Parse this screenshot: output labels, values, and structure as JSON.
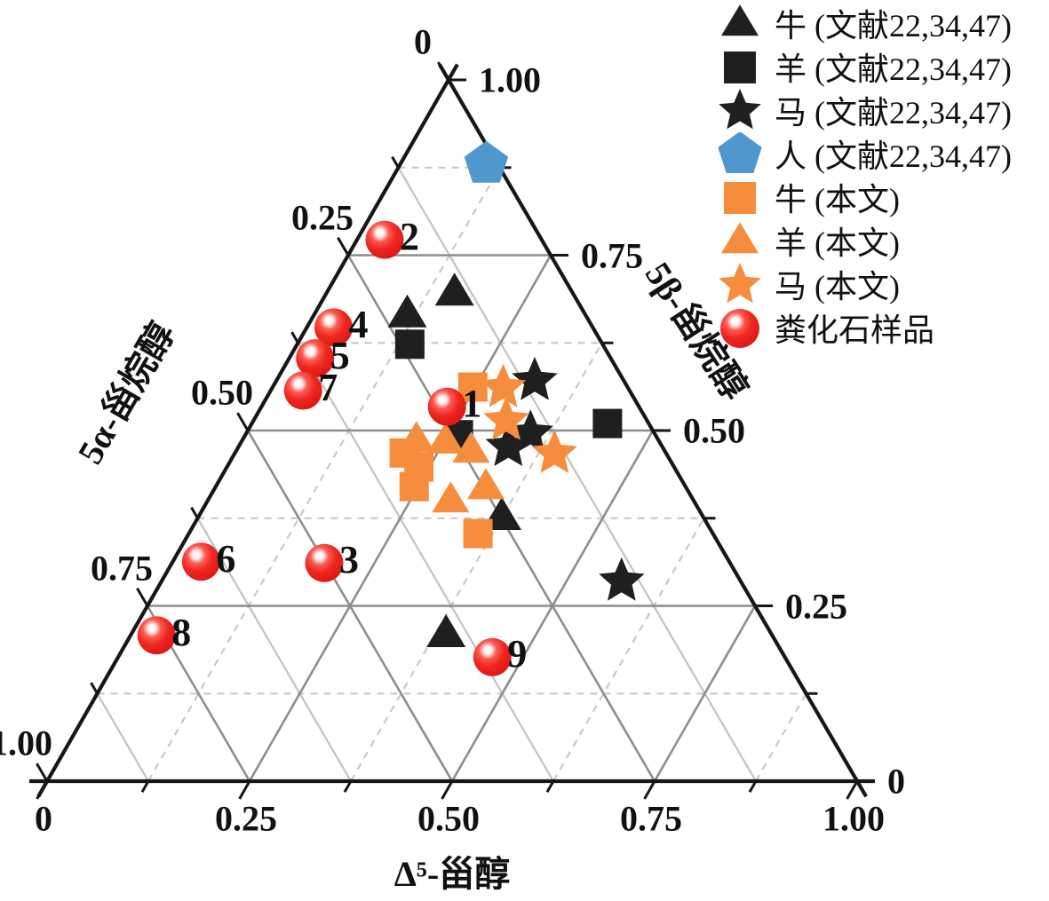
{
  "colors": {
    "black": "#1f1f1f",
    "orange": "#f68d3c",
    "blue": "#4f97cd",
    "red": "#e8201c",
    "axis": "#161616",
    "grid_major": "#8d8d8d",
    "grid_minor_solid": "#c2c2c2",
    "grid_minor_dash": "#c9c9c9",
    "text": "#111111"
  },
  "chart_data": {
    "type": "scatter",
    "subtype": "ternary",
    "title": "",
    "axes": {
      "left": {
        "title": "5α-甾烷醇",
        "ticks": [
          {
            "v": 0,
            "label": "0"
          },
          {
            "v": 0.25,
            "label": "0.25"
          },
          {
            "v": 0.5,
            "label": "0.50"
          },
          {
            "v": 0.75,
            "label": "0.75"
          },
          {
            "v": 1,
            "label": "1.00"
          }
        ]
      },
      "right": {
        "title": "5β-甾烷醇",
        "ticks": [
          {
            "v": 1,
            "label": "1.00"
          },
          {
            "v": 0.75,
            "label": "0.75"
          },
          {
            "v": 0.5,
            "label": "0.50"
          },
          {
            "v": 0.25,
            "label": "0.25"
          },
          {
            "v": 0,
            "label": "0"
          }
        ]
      },
      "bottom": {
        "title": "Δ⁵-甾醇",
        "ticks": [
          {
            "v": 0,
            "label": "0"
          },
          {
            "v": 0.25,
            "label": "0.25"
          },
          {
            "v": 0.5,
            "label": "0.50"
          },
          {
            "v": 0.75,
            "label": "0.75"
          },
          {
            "v": 1,
            "label": "1.00"
          }
        ]
      }
    },
    "grid": {
      "major": [
        0.25,
        0.5,
        0.75
      ],
      "minor": [
        0.125,
        0.375,
        0.625,
        0.875
      ],
      "minor_ticks": [
        0.125,
        0.375,
        0.625,
        0.875
      ]
    },
    "legend_position": "top-right",
    "series": [
      {
        "key": "cattle-lit",
        "name": "牛 (文献22,34,47)",
        "marker": "triangle",
        "color": "#1f1f1f",
        "points": [
          {
            "alpha": 0.146,
            "beta": 0.696,
            "delta": 0.158
          },
          {
            "alpha": 0.22,
            "beta": 0.665,
            "delta": 0.115
          },
          {
            "alpha": 0.249,
            "beta": 0.376,
            "delta": 0.375
          },
          {
            "alpha": 0.402,
            "beta": 0.209,
            "delta": 0.389
          }
        ]
      },
      {
        "key": "sheep-lit",
        "name": "羊 (文献22,34,47)",
        "marker": "square",
        "color": "#1f1f1f",
        "points": [
          {
            "alpha": 0.238,
            "beta": 0.623,
            "delta": 0.139
          },
          {
            "alpha": 0.243,
            "beta": 0.494,
            "delta": 0.263
          },
          {
            "alpha": 0.051,
            "beta": 0.51,
            "delta": 0.439
          }
        ]
      },
      {
        "key": "horse-lit",
        "name": "马 (文献22,34,47)",
        "marker": "star",
        "color": "#1f1f1f",
        "points": [
          {
            "alpha": 0.11,
            "beta": 0.571,
            "delta": 0.319
          },
          {
            "alpha": 0.153,
            "beta": 0.496,
            "delta": 0.351
          },
          {
            "alpha": 0.19,
            "beta": 0.477,
            "delta": 0.333
          },
          {
            "alpha": 0.147,
            "beta": 0.285,
            "delta": 0.568
          }
        ]
      },
      {
        "key": "human-lit",
        "name": "人 (文献22,34,47)",
        "marker": "pentagon",
        "color": "#4f97cd",
        "points": [
          {
            "alpha": 0.014,
            "beta": 0.88,
            "delta": 0.106
          }
        ]
      },
      {
        "key": "cattle-this",
        "name": "牛 (本文)",
        "marker": "square",
        "color": "#f68d3c",
        "points": [
          {
            "alpha": 0.191,
            "beta": 0.562,
            "delta": 0.247
          },
          {
            "alpha": 0.323,
            "beta": 0.468,
            "delta": 0.209
          },
          {
            "alpha": 0.315,
            "beta": 0.448,
            "delta": 0.237
          },
          {
            "alpha": 0.335,
            "beta": 0.42,
            "delta": 0.245
          },
          {
            "alpha": 0.29,
            "beta": 0.353,
            "delta": 0.357
          }
        ]
      },
      {
        "key": "sheep-this",
        "name": "羊 (本文)",
        "marker": "triangle",
        "color": "#f68d3c",
        "points": [
          {
            "alpha": 0.299,
            "beta": 0.486,
            "delta": 0.215
          },
          {
            "alpha": 0.264,
            "beta": 0.484,
            "delta": 0.252
          },
          {
            "alpha": 0.239,
            "beta": 0.471,
            "delta": 0.29
          },
          {
            "alpha": 0.247,
            "beta": 0.419,
            "delta": 0.334
          },
          {
            "alpha": 0.3,
            "beta": 0.4,
            "delta": 0.3
          }
        ]
      },
      {
        "key": "horse-this",
        "name": "马 (本文)",
        "marker": "star",
        "color": "#f68d3c",
        "points": [
          {
            "alpha": 0.154,
            "beta": 0.561,
            "delta": 0.285
          },
          {
            "alpha": 0.174,
            "beta": 0.514,
            "delta": 0.312
          },
          {
            "alpha": 0.138,
            "beta": 0.467,
            "delta": 0.395
          }
        ]
      },
      {
        "key": "coprolite",
        "name": "粪化石样品",
        "marker": "sphere",
        "color": "#e8201c",
        "points": [
          {
            "label": "1",
            "alpha": 0.237,
            "beta": 0.534,
            "delta": 0.229
          },
          {
            "label": "2",
            "alpha": 0.194,
            "beta": 0.772,
            "delta": 0.034
          },
          {
            "label": "3",
            "alpha": 0.501,
            "beta": 0.311,
            "delta": 0.188
          },
          {
            "label": "4",
            "alpha": 0.32,
            "beta": 0.647,
            "delta": 0.033
          },
          {
            "label": "5",
            "alpha": 0.365,
            "beta": 0.603,
            "delta": 0.032
          },
          {
            "label": "6",
            "alpha": 0.652,
            "beta": 0.313,
            "delta": 0.035
          },
          {
            "label": "7",
            "alpha": 0.403,
            "beta": 0.557,
            "delta": 0.04
          },
          {
            "label": "8",
            "alpha": 0.76,
            "beta": 0.208,
            "delta": 0.032
          },
          {
            "label": "9",
            "alpha": 0.361,
            "beta": 0.177,
            "delta": 0.462
          }
        ]
      }
    ]
  }
}
